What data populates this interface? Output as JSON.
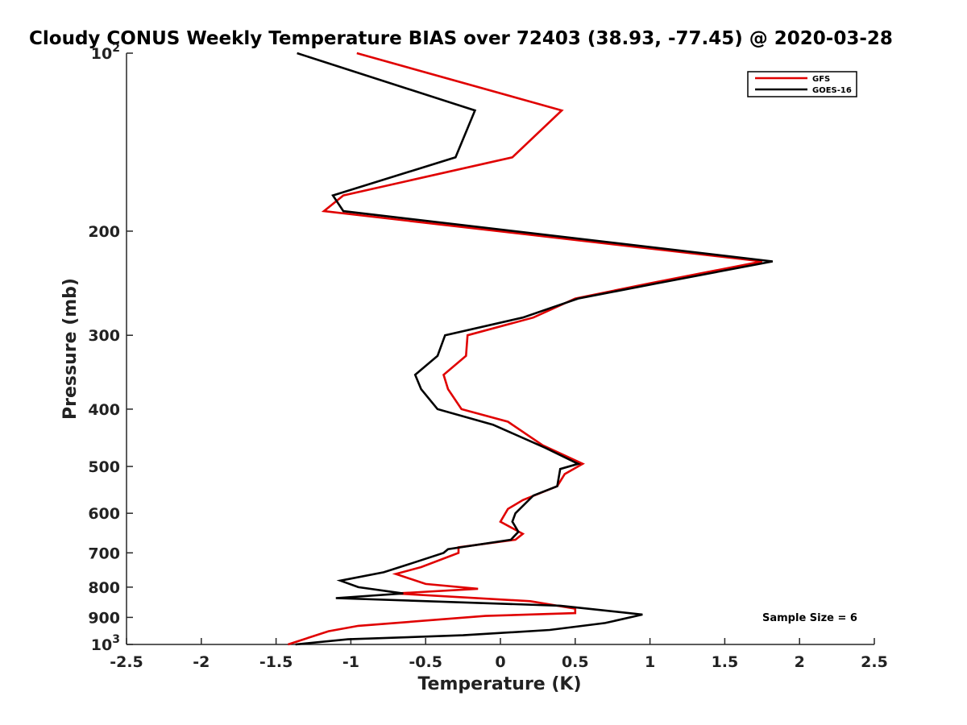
{
  "chart_data": {
    "type": "line",
    "title": "Cloudy CONUS Weekly Temperature BIAS over 72403 (38.93, -77.45) @ 2020-03-28",
    "xlabel": "Temperature (K)",
    "ylabel": "Pressure (mb)",
    "xlim": [
      -2.5,
      2.5
    ],
    "ylim": [
      100,
      1000
    ],
    "y_scale": "log",
    "y_reversed": true,
    "grid": false,
    "legend_position": "top-right",
    "x_ticks": [
      -2.5,
      -2,
      -1.5,
      -1,
      -0.5,
      0,
      0.5,
      1,
      1.5,
      2,
      2.5
    ],
    "x_tick_labels": [
      "-2.5",
      "-2",
      "-1.5",
      "-1",
      "-0.5",
      "0",
      "0.5",
      "1",
      "1.5",
      "2",
      "2.5"
    ],
    "y_ticks": [
      100,
      200,
      300,
      400,
      500,
      600,
      700,
      800,
      900,
      1000
    ],
    "y_tick_labels": [
      {
        "base": "10",
        "exp": "2"
      },
      {
        "base": "200"
      },
      {
        "base": "300"
      },
      {
        "base": "400"
      },
      {
        "base": "500"
      },
      {
        "base": "600"
      },
      {
        "base": "700"
      },
      {
        "base": "800"
      },
      {
        "base": "900"
      },
      {
        "base": "10",
        "exp": "3"
      }
    ],
    "series": [
      {
        "name": "GFS",
        "color": "#e00000",
        "points": [
          [
            -0.96,
            100
          ],
          [
            0.41,
            125
          ],
          [
            0.08,
            150
          ],
          [
            -1.05,
            174
          ],
          [
            -1.18,
            185
          ],
          [
            1.75,
            225
          ],
          [
            1.0,
            245
          ],
          [
            0.5,
            260
          ],
          [
            0.22,
            280
          ],
          [
            -0.22,
            300
          ],
          [
            -0.23,
            325
          ],
          [
            -0.38,
            350
          ],
          [
            -0.35,
            370
          ],
          [
            -0.26,
            400
          ],
          [
            0.05,
            420
          ],
          [
            0.28,
            460
          ],
          [
            0.55,
            495
          ],
          [
            0.43,
            515
          ],
          [
            0.38,
            540
          ],
          [
            0.15,
            570
          ],
          [
            0.05,
            590
          ],
          [
            0.0,
            620
          ],
          [
            0.15,
            650
          ],
          [
            0.1,
            665
          ],
          [
            -0.28,
            685
          ],
          [
            -0.28,
            700
          ],
          [
            -0.53,
            740
          ],
          [
            -0.7,
            760
          ],
          [
            -0.5,
            790
          ],
          [
            -0.15,
            805
          ],
          [
            -0.7,
            820
          ],
          [
            0.2,
            845
          ],
          [
            0.5,
            870
          ],
          [
            0.5,
            885
          ],
          [
            -0.1,
            895
          ],
          [
            -0.95,
            930
          ],
          [
            -1.15,
            950
          ],
          [
            -1.42,
            1000
          ]
        ]
      },
      {
        "name": "GOES-16",
        "color": "#000000",
        "points": [
          [
            -1.36,
            100
          ],
          [
            -0.17,
            125
          ],
          [
            -0.3,
            150
          ],
          [
            -1.12,
            174
          ],
          [
            -1.05,
            185
          ],
          [
            1.82,
            225
          ],
          [
            1.05,
            245
          ],
          [
            0.52,
            260
          ],
          [
            0.15,
            280
          ],
          [
            -0.37,
            300
          ],
          [
            -0.42,
            325
          ],
          [
            -0.57,
            350
          ],
          [
            -0.53,
            370
          ],
          [
            -0.42,
            400
          ],
          [
            -0.42,
            400
          ],
          [
            -0.05,
            425
          ],
          [
            0.3,
            465
          ],
          [
            0.52,
            495
          ],
          [
            0.4,
            505
          ],
          [
            0.38,
            540
          ],
          [
            0.22,
            560
          ],
          [
            0.1,
            600
          ],
          [
            0.08,
            620
          ],
          [
            0.12,
            645
          ],
          [
            0.07,
            665
          ],
          [
            -0.35,
            690
          ],
          [
            -0.38,
            700
          ],
          [
            -0.6,
            730
          ],
          [
            -0.78,
            755
          ],
          [
            -1.07,
            780
          ],
          [
            -0.95,
            800
          ],
          [
            -0.65,
            820
          ],
          [
            -1.1,
            835
          ],
          [
            0.4,
            860
          ],
          [
            0.95,
            890
          ],
          [
            0.7,
            920
          ],
          [
            0.33,
            945
          ],
          [
            -0.25,
            965
          ],
          [
            -1.02,
            980
          ],
          [
            -1.37,
            1000
          ]
        ]
      }
    ],
    "annotation": "Sample Size = 6"
  }
}
